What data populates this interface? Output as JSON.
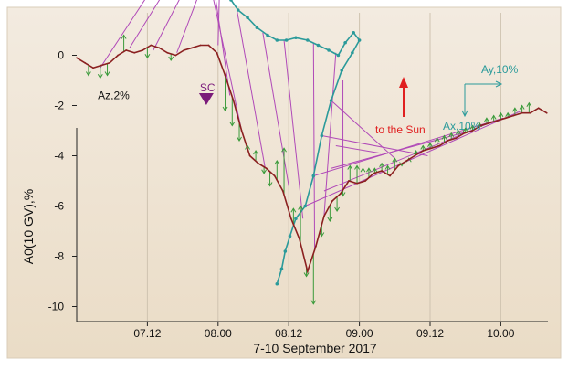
{
  "chart_data": {
    "type": "line",
    "xlabel": "7-10 September 2017",
    "ylabel": "A0(10 GV),%",
    "x_unit": "hours",
    "xlim": [
      0,
      40
    ],
    "ylim": [
      -10.6,
      1.4
    ],
    "x_ticks": [
      {
        "value": 6,
        "label": "07.12"
      },
      {
        "value": 12,
        "label": "08.00"
      },
      {
        "value": 18,
        "label": "08.12"
      },
      {
        "value": 24,
        "label": "09.00"
      },
      {
        "value": 30,
        "label": "09.12"
      },
      {
        "value": 36,
        "label": "10.00"
      }
    ],
    "y_ticks": [
      0,
      -2,
      -4,
      -6,
      -8,
      -10
    ],
    "grid": "vertical",
    "series": [
      {
        "role": "a0",
        "color": "#8b2020",
        "x": [
          0.0,
          0.7,
          1.4,
          2.1,
          2.8,
          3.5,
          4.2,
          4.9,
          5.6,
          6.3,
          7.0,
          7.7,
          8.4,
          9.1,
          9.8,
          10.5,
          11.2,
          11.9,
          12.6,
          13.3,
          14.0,
          14.7,
          15.4,
          16.1,
          16.8,
          17.5,
          18.2,
          18.9,
          19.6,
          20.3,
          21.0,
          21.7,
          22.4,
          23.1,
          23.8,
          24.5,
          25.2,
          25.9,
          26.6,
          27.3,
          28.0,
          28.7,
          29.4,
          30.1,
          30.8,
          31.5,
          32.2,
          32.9,
          33.6,
          34.3,
          35.0,
          35.7,
          36.4,
          37.1,
          37.8,
          38.5,
          39.2,
          39.9
        ],
        "values": [
          -0.1,
          -0.3,
          -0.5,
          -0.4,
          -0.3,
          0.0,
          0.2,
          0.1,
          0.2,
          0.4,
          0.3,
          0.1,
          0.0,
          0.2,
          0.3,
          0.4,
          0.4,
          0.1,
          -0.8,
          -1.8,
          -3.0,
          -4.0,
          -4.3,
          -4.5,
          -4.8,
          -5.4,
          -6.5,
          -7.3,
          -8.6,
          -7.6,
          -6.4,
          -5.8,
          -5.5,
          -5.0,
          -5.1,
          -5.0,
          -4.7,
          -4.6,
          -4.8,
          -4.4,
          -4.2,
          -4.0,
          -3.8,
          -3.7,
          -3.6,
          -3.4,
          -3.3,
          -3.1,
          -3.0,
          -2.8,
          -2.7,
          -2.6,
          -2.5,
          -2.4,
          -2.3,
          -2.3,
          -2.1,
          -2.3
        ]
      }
    ],
    "az_markers": [
      {
        "x": 1.0,
        "value": -0.8
      },
      {
        "x": 2.0,
        "value": -0.9
      },
      {
        "x": 2.6,
        "value": -0.8
      },
      {
        "x": 4.0,
        "value": 0.8
      },
      {
        "x": 6.0,
        "value": -0.1
      },
      {
        "x": 8.0,
        "value": -0.2
      },
      {
        "x": 12.6,
        "value": -2.2
      },
      {
        "x": 13.2,
        "value": -2.8
      },
      {
        "x": 13.8,
        "value": -3.4
      },
      {
        "x": 14.5,
        "value": -3.6
      },
      {
        "x": 15.2,
        "value": -3.8
      },
      {
        "x": 15.9,
        "value": -4.7
      },
      {
        "x": 16.4,
        "value": -5.2
      },
      {
        "x": 17.0,
        "value": -4.2
      },
      {
        "x": 17.6,
        "value": -3.7
      },
      {
        "x": 18.4,
        "value": -6.1
      },
      {
        "x": 19.0,
        "value": -6.0
      },
      {
        "x": 19.5,
        "value": -8.8
      },
      {
        "x": 20.1,
        "value": -9.9
      },
      {
        "x": 20.8,
        "value": -7.2
      },
      {
        "x": 21.5,
        "value": -6.6
      },
      {
        "x": 22.1,
        "value": -6.2
      },
      {
        "x": 22.6,
        "value": -5.6
      },
      {
        "x": 23.2,
        "value": -4.4
      },
      {
        "x": 23.8,
        "value": -4.4
      },
      {
        "x": 24.3,
        "value": -4.5
      },
      {
        "x": 24.8,
        "value": -4.5
      },
      {
        "x": 25.3,
        "value": -4.5
      },
      {
        "x": 25.9,
        "value": -4.3
      },
      {
        "x": 26.4,
        "value": -4.4
      },
      {
        "x": 27.0,
        "value": -4.1
      },
      {
        "x": 27.6,
        "value": -4.4
      },
      {
        "x": 28.2,
        "value": -4.1
      },
      {
        "x": 28.8,
        "value": -3.8
      },
      {
        "x": 29.4,
        "value": -3.6
      },
      {
        "x": 30.0,
        "value": -3.5
      },
      {
        "x": 30.6,
        "value": -3.3
      },
      {
        "x": 31.2,
        "value": -3.2
      },
      {
        "x": 31.8,
        "value": -3.1
      },
      {
        "x": 32.4,
        "value": -3.0
      },
      {
        "x": 33.0,
        "value": -2.9
      },
      {
        "x": 33.6,
        "value": -2.8
      },
      {
        "x": 34.2,
        "value": -2.7
      },
      {
        "x": 34.8,
        "value": -2.5
      },
      {
        "x": 35.4,
        "value": -2.4
      },
      {
        "x": 36.0,
        "value": -2.3
      },
      {
        "x": 36.6,
        "value": -2.3
      },
      {
        "x": 37.2,
        "value": -2.1
      },
      {
        "x": 37.8,
        "value": -2.0
      },
      {
        "x": 38.4,
        "value": -1.9
      }
    ],
    "vector_path": {
      "color": "#2a9a9a",
      "points": [
        [
          9.4,
          4.8
        ],
        [
          10.2,
          4.5
        ],
        [
          11.0,
          4.3
        ],
        [
          11.8,
          4.4
        ],
        [
          12.2,
          4.1
        ],
        [
          11.6,
          3.6
        ],
        [
          11.2,
          3.0
        ],
        [
          11.9,
          2.7
        ],
        [
          12.6,
          2.6
        ],
        [
          13.1,
          2.2
        ],
        [
          13.7,
          1.8
        ],
        [
          14.5,
          1.5
        ],
        [
          15.3,
          1.1
        ],
        [
          16.2,
          0.8
        ],
        [
          17.0,
          0.6
        ],
        [
          17.8,
          0.6
        ],
        [
          18.6,
          0.7
        ],
        [
          19.6,
          0.6
        ],
        [
          20.5,
          0.4
        ],
        [
          21.4,
          0.2
        ],
        [
          22.2,
          0.0
        ],
        [
          22.8,
          0.5
        ],
        [
          23.5,
          0.9
        ],
        [
          24.0,
          0.6
        ],
        [
          23.4,
          0.1
        ],
        [
          22.5,
          -0.6
        ],
        [
          21.6,
          -1.8
        ],
        [
          20.8,
          -3.2
        ],
        [
          20.1,
          -4.8
        ],
        [
          19.4,
          -6.0
        ],
        [
          18.6,
          -6.5
        ],
        [
          18.1,
          -7.2
        ],
        [
          17.7,
          -7.8
        ],
        [
          17.4,
          -8.5
        ],
        [
          17.0,
          -9.1
        ]
      ]
    },
    "connector_lines": [
      {
        "from": [
          2.0,
          -0.5
        ],
        "to": [
          9.4,
          4.8
        ]
      },
      {
        "from": [
          4.5,
          0.3
        ],
        "to": [
          10.2,
          4.6
        ]
      },
      {
        "from": [
          6.5,
          0.2
        ],
        "to": [
          11.0,
          4.3
        ]
      },
      {
        "from": [
          8.5,
          0.1
        ],
        "to": [
          11.8,
          4.2
        ]
      },
      {
        "from": [
          12.0,
          0.4
        ],
        "to": [
          12.2,
          4.0
        ]
      },
      {
        "from": [
          13.0,
          -1.6
        ],
        "to": [
          11.4,
          3.5
        ]
      },
      {
        "from": [
          14.0,
          -3.0
        ],
        "to": [
          11.3,
          2.9
        ]
      },
      {
        "from": [
          16.0,
          -4.5
        ],
        "to": [
          13.6,
          1.8
        ]
      },
      {
        "from": [
          18.0,
          -5.2
        ],
        "to": [
          15.8,
          0.9
        ]
      },
      {
        "from": [
          19.2,
          -6.5
        ],
        "to": [
          17.6,
          0.6
        ]
      },
      {
        "from": [
          20.2,
          -7.8
        ],
        "to": [
          20.1,
          0.5
        ]
      },
      {
        "from": [
          21.0,
          -6.4
        ],
        "to": [
          22.0,
          0.1
        ]
      },
      {
        "from": [
          22.6,
          -5.4
        ],
        "to": [
          22.6,
          -1.0
        ]
      },
      {
        "from": [
          22.0,
          -3.6
        ],
        "to": [
          25.8,
          -3.9
        ]
      },
      {
        "from": [
          21.6,
          -1.8
        ],
        "to": [
          27.0,
          -4.1
        ]
      },
      {
        "from": [
          20.8,
          -3.2
        ],
        "to": [
          29.8,
          -4.0
        ]
      },
      {
        "from": [
          21.6,
          -4.5
        ],
        "to": [
          33.5,
          -3.0
        ]
      },
      {
        "from": [
          21.0,
          -5.4
        ],
        "to": [
          35.0,
          -2.7
        ]
      },
      {
        "from": [
          20.1,
          -4.8
        ],
        "to": [
          36.2,
          -2.5
        ]
      },
      {
        "from": [
          19.4,
          -6.0
        ],
        "to": [
          37.8,
          -2.2
        ]
      }
    ],
    "sc_marker": {
      "label": "SC",
      "x": 11.0,
      "value": -1.4
    },
    "az_label": {
      "text": "Az,2%",
      "x": 3.5,
      "value": -1.6
    },
    "sun_arrow": {
      "label": "to the Sun",
      "color": "#e02020"
    },
    "axes_gadget": {
      "ax_label": "Ax,10%",
      "ay_label": "Ay,10%",
      "color": "#2a9a9a"
    }
  }
}
